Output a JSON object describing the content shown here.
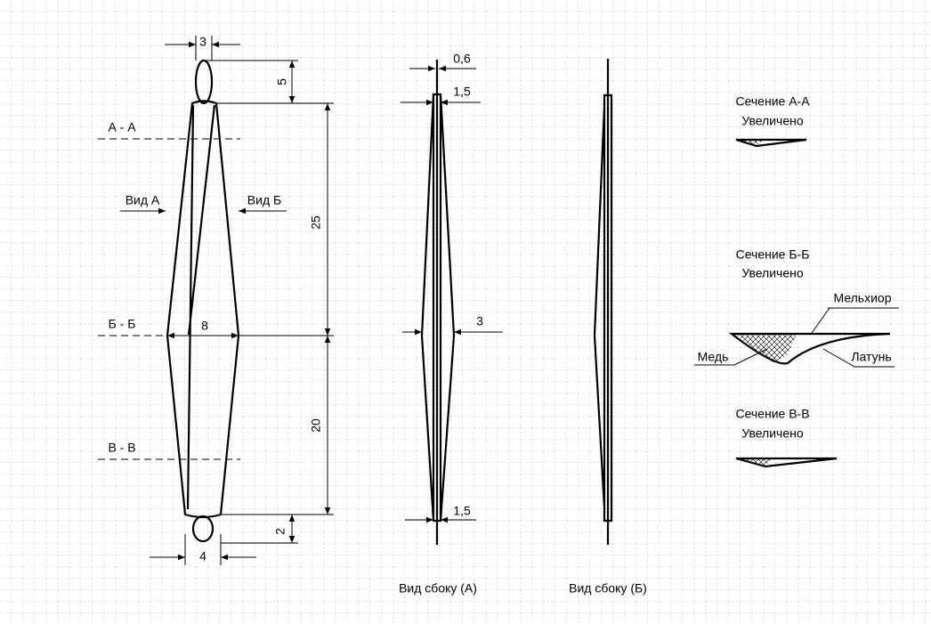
{
  "front_view": {
    "dimensions": {
      "top_loop_width": "3",
      "top_loop_height": "5",
      "upper_length": "25",
      "max_width": "8",
      "lower_length": "20",
      "bottom_loop_height": "2",
      "bottom_loop_width": "4"
    },
    "section_marks": [
      "А - А",
      "Б - Б",
      "В - В"
    ],
    "view_arrows": [
      "Вид А",
      "Вид Б"
    ]
  },
  "side_view_a": {
    "caption": "Вид сбоку (А)",
    "dimensions": [
      "0,6",
      "1,5",
      "3",
      "1,5"
    ]
  },
  "side_view_b": {
    "caption": "Вид сбоку (Б)"
  },
  "sections": [
    {
      "title": "Сечение А-А",
      "note": "Увеличено"
    },
    {
      "title": "Сечение Б-Б",
      "note": "Увеличено",
      "materials": [
        "Мельхиор",
        "Медь",
        "Латунь"
      ]
    },
    {
      "title": "Сечение В-В",
      "note": "Увеличено"
    }
  ]
}
